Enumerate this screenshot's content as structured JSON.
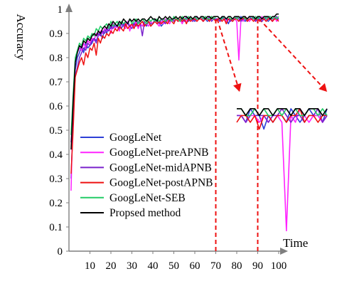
{
  "chart_data": {
    "type": "line",
    "title": "",
    "xlabel": "Time",
    "ylabel": "Accuracy",
    "xlim": [
      0,
      100
    ],
    "ylim": [
      0,
      1
    ],
    "xticks": [
      "10",
      "20",
      "30",
      "40",
      "50",
      "60",
      "70",
      "80",
      "90",
      "100"
    ],
    "yticks": [
      "0",
      "0.1",
      "0.2",
      "0.3",
      "0.4",
      "0.5",
      "0.6",
      "0.7",
      "0.8",
      "0.9",
      "1"
    ],
    "grid": false,
    "legend_position": "left",
    "zoom_inset": {
      "x_range": [
        70,
        90
      ],
      "inset_y_range": [
        0.45,
        0.66
      ]
    },
    "x": [
      1,
      2,
      3,
      4,
      5,
      6,
      7,
      8,
      9,
      10,
      11,
      12,
      13,
      14,
      15,
      16,
      17,
      18,
      19,
      20,
      21,
      22,
      23,
      24,
      25,
      26,
      27,
      28,
      29,
      30,
      31,
      32,
      33,
      34,
      35,
      36,
      37,
      38,
      39,
      40,
      41,
      42,
      43,
      44,
      45,
      46,
      47,
      48,
      49,
      50,
      51,
      52,
      53,
      54,
      55,
      56,
      57,
      58,
      59,
      60,
      61,
      62,
      63,
      64,
      65,
      66,
      67,
      68,
      69,
      70,
      71,
      72,
      73,
      74,
      75,
      76,
      77,
      78,
      79,
      80,
      81,
      82,
      83,
      84,
      85,
      86,
      87,
      88,
      89,
      90,
      91,
      92,
      93,
      94,
      95,
      96,
      97,
      98,
      99,
      100
    ],
    "series": [
      {
        "name": "GoogLeNet",
        "color": "#2e3fd6",
        "values": [
          0.3,
          0.55,
          0.75,
          0.8,
          0.82,
          0.85,
          0.82,
          0.86,
          0.84,
          0.85,
          0.86,
          0.88,
          0.87,
          0.89,
          0.9,
          0.88,
          0.92,
          0.9,
          0.93,
          0.92,
          0.94,
          0.93,
          0.93,
          0.94,
          0.92,
          0.94,
          0.93,
          0.95,
          0.93,
          0.94,
          0.94,
          0.95,
          0.93,
          0.94,
          0.95,
          0.94,
          0.93,
          0.95,
          0.94,
          0.94,
          0.95,
          0.94,
          0.95,
          0.93,
          0.94,
          0.95,
          0.96,
          0.95,
          0.96,
          0.95,
          0.96,
          0.95,
          0.96,
          0.95,
          0.96,
          0.96,
          0.95,
          0.96,
          0.96,
          0.95,
          0.96,
          0.96,
          0.97,
          0.96,
          0.96,
          0.95,
          0.96,
          0.97,
          0.96,
          0.96,
          0.96,
          0.95,
          0.97,
          0.96,
          0.96,
          0.94,
          0.96,
          0.95,
          0.96,
          0.96,
          0.95,
          0.97,
          0.96,
          0.95,
          0.96,
          0.97,
          0.96,
          0.96,
          0.95,
          0.97,
          0.96,
          0.95,
          0.96,
          0.96,
          0.95,
          0.96,
          0.96,
          0.97,
          0.96,
          0.96
        ]
      },
      {
        "name": "GoogLeNet-preAPNB",
        "color": "#ff22ff",
        "values": [
          0.25,
          0.6,
          0.78,
          0.82,
          0.84,
          0.83,
          0.86,
          0.84,
          0.87,
          0.86,
          0.88,
          0.87,
          0.9,
          0.89,
          0.91,
          0.9,
          0.92,
          0.91,
          0.93,
          0.9,
          0.94,
          0.92,
          0.93,
          0.91,
          0.94,
          0.93,
          0.92,
          0.95,
          0.91,
          0.94,
          0.93,
          0.95,
          0.92,
          0.94,
          0.93,
          0.95,
          0.94,
          0.93,
          0.95,
          0.94,
          0.95,
          0.94,
          0.93,
          0.95,
          0.94,
          0.96,
          0.95,
          0.94,
          0.96,
          0.95,
          0.96,
          0.95,
          0.96,
          0.94,
          0.96,
          0.95,
          0.96,
          0.96,
          0.95,
          0.96,
          0.95,
          0.96,
          0.97,
          0.95,
          0.96,
          0.96,
          0.95,
          0.97,
          0.96,
          0.96,
          0.96,
          0.95,
          0.96,
          0.96,
          0.95,
          0.96,
          0.95,
          0.96,
          0.96,
          0.95,
          0.79,
          0.96,
          0.95,
          0.97,
          0.96,
          0.95,
          0.96,
          0.96,
          0.95,
          0.96,
          0.95,
          0.97,
          0.96,
          0.95,
          0.96,
          0.96,
          0.95,
          0.97,
          0.95,
          0.96
        ]
      },
      {
        "name": "GoogLeNet-midAPNB",
        "color": "#7a22cc",
        "values": [
          0.45,
          0.58,
          0.72,
          0.76,
          0.8,
          0.82,
          0.84,
          0.83,
          0.86,
          0.85,
          0.87,
          0.88,
          0.86,
          0.9,
          0.89,
          0.91,
          0.9,
          0.92,
          0.91,
          0.93,
          0.92,
          0.94,
          0.93,
          0.92,
          0.94,
          0.93,
          0.95,
          0.94,
          0.93,
          0.92,
          0.94,
          0.93,
          0.95,
          0.94,
          0.89,
          0.95,
          0.94,
          0.95,
          0.93,
          0.94,
          0.96,
          0.95,
          0.94,
          0.96,
          0.95,
          0.94,
          0.96,
          0.95,
          0.96,
          0.95,
          0.96,
          0.96,
          0.95,
          0.96,
          0.95,
          0.97,
          0.96,
          0.96,
          0.95,
          0.96,
          0.97,
          0.96,
          0.96,
          0.95,
          0.96,
          0.96,
          0.97,
          0.95,
          0.96,
          0.96,
          0.96,
          0.95,
          0.96,
          0.97,
          0.96,
          0.96,
          0.95,
          0.96,
          0.96,
          0.97,
          0.96,
          0.95,
          0.96,
          0.96,
          0.95,
          0.96,
          0.96,
          0.97,
          0.95,
          0.96,
          0.96,
          0.95,
          0.96,
          0.97,
          0.96,
          0.96,
          0.95,
          0.96,
          0.97,
          0.96
        ]
      },
      {
        "name": "GoogLeNet-postAPNB",
        "color": "#ee1111",
        "values": [
          0.32,
          0.5,
          0.72,
          0.75,
          0.78,
          0.8,
          0.77,
          0.82,
          0.8,
          0.84,
          0.83,
          0.86,
          0.81,
          0.88,
          0.86,
          0.89,
          0.88,
          0.9,
          0.89,
          0.91,
          0.9,
          0.92,
          0.91,
          0.93,
          0.92,
          0.91,
          0.94,
          0.92,
          0.93,
          0.94,
          0.92,
          0.94,
          0.93,
          0.94,
          0.95,
          0.93,
          0.94,
          0.95,
          0.93,
          0.94,
          0.95,
          0.94,
          0.95,
          0.94,
          0.95,
          0.95,
          0.94,
          0.96,
          0.95,
          0.94,
          0.96,
          0.95,
          0.96,
          0.95,
          0.96,
          0.94,
          0.96,
          0.95,
          0.96,
          0.96,
          0.95,
          0.96,
          0.96,
          0.95,
          0.96,
          0.96,
          0.95,
          0.97,
          0.96,
          0.95,
          0.96,
          0.96,
          0.95,
          0.96,
          0.94,
          0.96,
          0.96,
          0.95,
          0.96,
          0.96,
          0.95,
          0.96,
          0.96,
          0.97,
          0.95,
          0.96,
          0.96,
          0.95,
          0.96,
          0.96,
          0.95,
          0.96,
          0.96,
          0.95,
          0.96,
          0.96,
          0.95,
          0.96,
          0.96,
          0.95
        ]
      },
      {
        "name": "GoogLeNet-SEB",
        "color": "#22cc66",
        "values": [
          0.48,
          0.65,
          0.8,
          0.83,
          0.86,
          0.85,
          0.88,
          0.87,
          0.89,
          0.88,
          0.9,
          0.89,
          0.92,
          0.91,
          0.93,
          0.92,
          0.93,
          0.94,
          0.92,
          0.95,
          0.93,
          0.94,
          0.95,
          0.93,
          0.95,
          0.94,
          0.95,
          0.94,
          0.96,
          0.94,
          0.95,
          0.96,
          0.94,
          0.95,
          0.96,
          0.95,
          0.94,
          0.96,
          0.95,
          0.96,
          0.95,
          0.96,
          0.95,
          0.96,
          0.96,
          0.95,
          0.96,
          0.96,
          0.95,
          0.97,
          0.96,
          0.96,
          0.95,
          0.97,
          0.96,
          0.96,
          0.97,
          0.96,
          0.96,
          0.97,
          0.96,
          0.96,
          0.97,
          0.96,
          0.97,
          0.96,
          0.96,
          0.97,
          0.96,
          0.97,
          0.97,
          0.96,
          0.96,
          0.97,
          0.96,
          0.97,
          0.96,
          0.96,
          0.97,
          0.96,
          0.97,
          0.96,
          0.97,
          0.96,
          0.96,
          0.97,
          0.97,
          0.96,
          0.97,
          0.96,
          0.97,
          0.96,
          0.97,
          0.96,
          0.97,
          0.97,
          0.96,
          0.97,
          0.96,
          0.97
        ]
      },
      {
        "name": "Propsed method",
        "color": "#000000",
        "values": [
          0.42,
          0.62,
          0.78,
          0.82,
          0.85,
          0.84,
          0.87,
          0.86,
          0.88,
          0.87,
          0.89,
          0.9,
          0.89,
          0.91,
          0.9,
          0.92,
          0.93,
          0.92,
          0.94,
          0.93,
          0.95,
          0.94,
          0.93,
          0.95,
          0.94,
          0.96,
          0.95,
          0.94,
          0.96,
          0.95,
          0.96,
          0.95,
          0.96,
          0.95,
          0.96,
          0.96,
          0.95,
          0.96,
          0.97,
          0.96,
          0.96,
          0.95,
          0.97,
          0.96,
          0.96,
          0.97,
          0.96,
          0.97,
          0.96,
          0.96,
          0.97,
          0.96,
          0.97,
          0.96,
          0.97,
          0.97,
          0.96,
          0.97,
          0.96,
          0.97,
          0.97,
          0.96,
          0.97,
          0.97,
          0.96,
          0.97,
          0.97,
          0.96,
          0.97,
          0.97,
          0.97,
          0.96,
          0.97,
          0.97,
          0.96,
          0.97,
          0.97,
          0.96,
          0.97,
          0.97,
          0.97,
          0.96,
          0.97,
          0.97,
          0.96,
          0.97,
          0.97,
          0.97,
          0.96,
          0.97,
          0.97,
          0.96,
          0.97,
          0.97,
          0.97,
          0.96,
          0.97,
          0.97,
          0.98,
          0.98
        ]
      }
    ]
  }
}
